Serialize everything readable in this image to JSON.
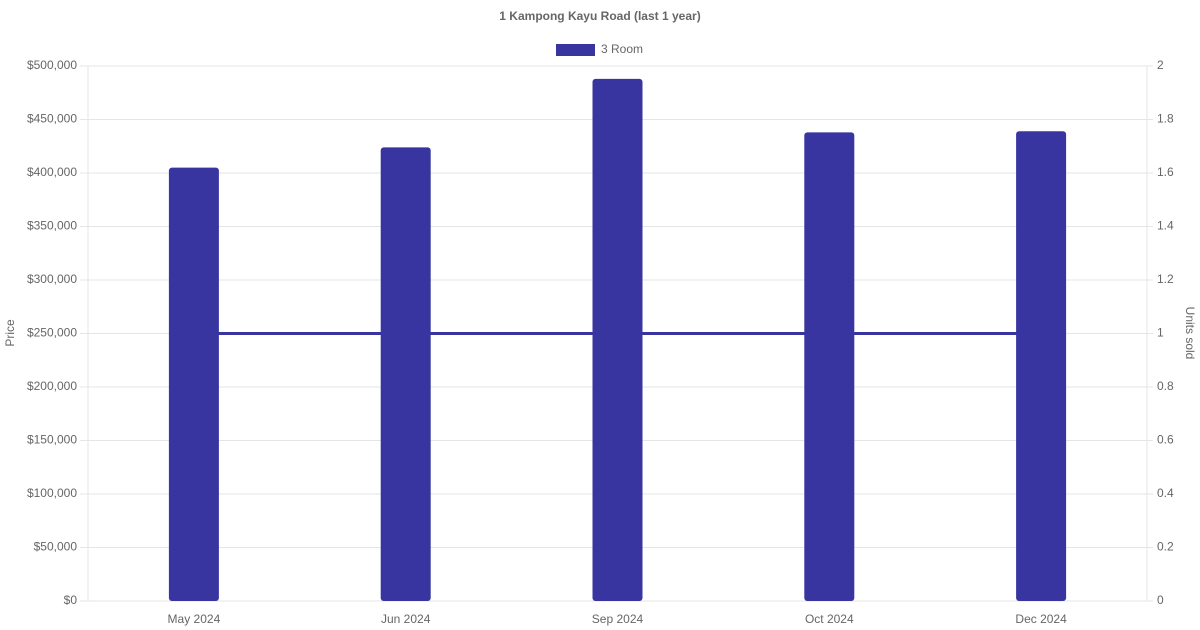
{
  "chart_data": {
    "type": "bar",
    "title": "1 Kampong Kayu Road (last 1 year)",
    "categories": [
      "May 2024",
      "Jun 2024",
      "Sep 2024",
      "Oct 2024",
      "Dec 2024"
    ],
    "series": [
      {
        "name": "3 Room",
        "color": "#3835a0",
        "values": [
          405000,
          424000,
          488000,
          438000,
          439000
        ]
      },
      {
        "type": "line",
        "axis": "y2",
        "color": "#3835a0",
        "values": [
          1,
          1,
          1,
          1,
          1
        ]
      }
    ],
    "y_label": "Price",
    "y2_label": "Units sold",
    "ylim": [
      0,
      500000
    ],
    "yticks": [
      {
        "value": 0,
        "label": "$0"
      },
      {
        "value": 50000,
        "label": "$50,000"
      },
      {
        "value": 100000,
        "label": "$100,000"
      },
      {
        "value": 150000,
        "label": "$150,000"
      },
      {
        "value": 200000,
        "label": "$200,000"
      },
      {
        "value": 250000,
        "label": "$250,000"
      },
      {
        "value": 300000,
        "label": "$300,000"
      },
      {
        "value": 350000,
        "label": "$350,000"
      },
      {
        "value": 400000,
        "label": "$400,000"
      },
      {
        "value": 450000,
        "label": "$450,000"
      },
      {
        "value": 500000,
        "label": "$500,000"
      }
    ],
    "y2lim": [
      0,
      2
    ],
    "y2ticks": [
      0,
      0.2,
      0.4,
      0.6,
      0.8,
      1,
      1.2,
      1.4,
      1.6,
      1.8,
      2
    ],
    "grid": true,
    "legend": "top"
  }
}
